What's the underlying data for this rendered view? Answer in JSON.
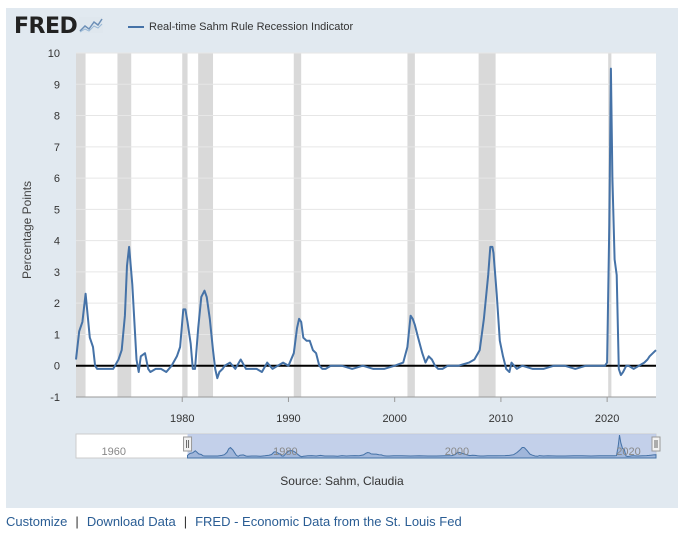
{
  "brand": "FRED",
  "links": [
    "Customize",
    "Download Data",
    "FRED - Economic Data from the St. Louis Fed"
  ],
  "link_separator": "|",
  "colors": {
    "series": "#4572a7",
    "recession": "#d9d9d9",
    "panel": "#e1e9f0",
    "navigator": "#b8c8e6",
    "link": "#2a5d94"
  },
  "icons": {
    "brand_graph": "line-graph-icon"
  },
  "chart_data": {
    "type": "line",
    "source": "Source: Sahm, Claudia",
    "ylabel": "Percentage Points",
    "xlim": [
      1970,
      2024.6
    ],
    "ylim": [
      -1,
      10
    ],
    "yticks": [
      -1,
      0,
      1,
      2,
      3,
      4,
      5,
      6,
      7,
      8,
      9,
      10
    ],
    "xticks": [
      1980,
      1990,
      2000,
      2010,
      2020
    ],
    "grid": true,
    "legend_position": "top",
    "zero_line": true,
    "recessions": [
      [
        1970.0,
        1970.9
      ],
      [
        1973.9,
        1975.2
      ],
      [
        1980.0,
        1980.5
      ],
      [
        1981.5,
        1982.9
      ],
      [
        1990.5,
        1991.2
      ],
      [
        2001.2,
        2001.9
      ],
      [
        2007.9,
        2009.5
      ],
      [
        2020.1,
        2020.4
      ]
    ],
    "navigator": {
      "ticks": [
        "1960",
        "1980",
        "2000",
        "2020"
      ],
      "tick_years": [
        1960,
        1980,
        2000,
        2020
      ],
      "xlim": [
        1957,
        2024.6
      ],
      "selection": [
        1970,
        2024.6
      ]
    },
    "series": [
      {
        "name": "Real-time Sahm Rule Recession Indicator",
        "x": [
          1970.0,
          1970.3,
          1970.6,
          1970.9,
          1971.1,
          1971.3,
          1971.6,
          1971.8,
          1972.0,
          1972.5,
          1973.0,
          1973.5,
          1974.0,
          1974.3,
          1974.6,
          1974.8,
          1975.0,
          1975.1,
          1975.3,
          1975.5,
          1975.7,
          1975.9,
          1976.1,
          1976.5,
          1976.8,
          1977.0,
          1977.5,
          1978.0,
          1978.5,
          1979.0,
          1979.5,
          1979.8,
          1980.1,
          1980.3,
          1980.5,
          1980.8,
          1981.0,
          1981.2,
          1981.5,
          1981.8,
          1982.1,
          1982.3,
          1982.6,
          1982.9,
          1983.1,
          1983.3,
          1983.5,
          1983.8,
          1984.0,
          1984.5,
          1985.0,
          1985.5,
          1986.0,
          1986.5,
          1987.0,
          1987.5,
          1988.0,
          1988.5,
          1989.0,
          1989.5,
          1990.0,
          1990.5,
          1990.8,
          1991.0,
          1991.2,
          1991.4,
          1991.7,
          1992.0,
          1992.3,
          1992.6,
          1992.9,
          1993.2,
          1993.5,
          1994.0,
          1995.0,
          1996.0,
          1997.0,
          1998.0,
          1999.0,
          2000.0,
          2000.8,
          2001.2,
          2001.5,
          2001.7,
          2001.9,
          2002.2,
          2002.6,
          2002.9,
          2003.2,
          2003.5,
          2003.8,
          2004.1,
          2004.5,
          2005.0,
          2006.0,
          2007.0,
          2007.5,
          2008.0,
          2008.4,
          2008.8,
          2009.0,
          2009.2,
          2009.3,
          2009.6,
          2009.9,
          2010.2,
          2010.5,
          2010.8,
          2011.0,
          2011.5,
          2012.0,
          2013.0,
          2014.0,
          2015.0,
          2016.0,
          2017.0,
          2018.0,
          2019.0,
          2019.8,
          2020.0,
          2020.2,
          2020.35,
          2020.5,
          2020.7,
          2020.9,
          2021.1,
          2021.3,
          2021.5,
          2021.8,
          2022.0,
          2022.5,
          2023.0,
          2023.5,
          2023.8,
          2024.0,
          2024.3,
          2024.6
        ],
        "values": [
          0.2,
          1.1,
          1.4,
          2.3,
          1.6,
          0.9,
          0.6,
          0.0,
          -0.1,
          -0.1,
          -0.1,
          -0.1,
          0.2,
          0.5,
          1.6,
          3.2,
          3.8,
          3.4,
          2.6,
          1.4,
          0.2,
          -0.2,
          0.3,
          0.4,
          -0.1,
          -0.2,
          -0.1,
          -0.1,
          -0.2,
          0.0,
          0.3,
          0.6,
          1.8,
          1.8,
          1.4,
          0.7,
          -0.1,
          -0.1,
          1.2,
          2.2,
          2.4,
          2.2,
          1.5,
          0.5,
          -0.1,
          -0.4,
          -0.2,
          -0.1,
          0.0,
          0.1,
          -0.1,
          0.2,
          -0.1,
          -0.1,
          -0.1,
          -0.2,
          0.1,
          -0.1,
          0.0,
          0.1,
          0.0,
          0.4,
          1.2,
          1.5,
          1.4,
          0.9,
          0.8,
          0.8,
          0.5,
          0.4,
          0.0,
          -0.1,
          -0.1,
          0.0,
          0.0,
          -0.1,
          0.0,
          -0.1,
          -0.1,
          0.0,
          0.1,
          0.6,
          1.6,
          1.5,
          1.3,
          0.9,
          0.4,
          0.1,
          0.3,
          0.2,
          0.0,
          -0.1,
          -0.1,
          0.0,
          0.0,
          0.1,
          0.2,
          0.5,
          1.5,
          2.9,
          3.8,
          3.8,
          3.6,
          2.3,
          0.8,
          0.3,
          -0.1,
          -0.2,
          0.1,
          -0.1,
          0.0,
          -0.1,
          -0.1,
          0.0,
          0.0,
          -0.1,
          0.0,
          0.0,
          0.0,
          0.1,
          4.5,
          9.5,
          6.0,
          3.4,
          2.9,
          -0.1,
          -0.3,
          -0.2,
          0.0,
          0.0,
          -0.1,
          0.0,
          0.1,
          0.2,
          0.3,
          0.4,
          0.5
        ]
      }
    ]
  }
}
